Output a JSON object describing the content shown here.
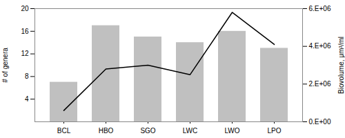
{
  "chart_data": {
    "type": "bar",
    "categories": [
      "BCL",
      "HBO",
      "SGO",
      "LWC",
      "LWO",
      "LPO"
    ],
    "series": [
      {
        "type": "bar",
        "color": "#c0c0c0",
        "values": [
          7,
          17,
          15,
          14,
          16,
          13
        ]
      },
      {
        "type": "line",
        "axis": "y2",
        "color": "#000000",
        "values": [
          600000,
          2800000,
          3000000,
          2500000,
          5800000,
          4100000
        ]
      }
    ],
    "ylabel": "# of genera",
    "y2label": "Biovolume, μm³/ml",
    "ylim": [
      0,
      20
    ],
    "yticks": [
      4,
      8,
      12,
      16,
      20
    ],
    "y2lim": [
      0,
      6000000
    ],
    "y2ticks": [
      {
        "value": 0,
        "label": "0.E+00"
      },
      {
        "value": 2000000,
        "label": "2.E+06"
      },
      {
        "value": 4000000,
        "label": "4.E+06"
      },
      {
        "value": 6000000,
        "label": "6.E+06"
      }
    ],
    "grid": false
  }
}
